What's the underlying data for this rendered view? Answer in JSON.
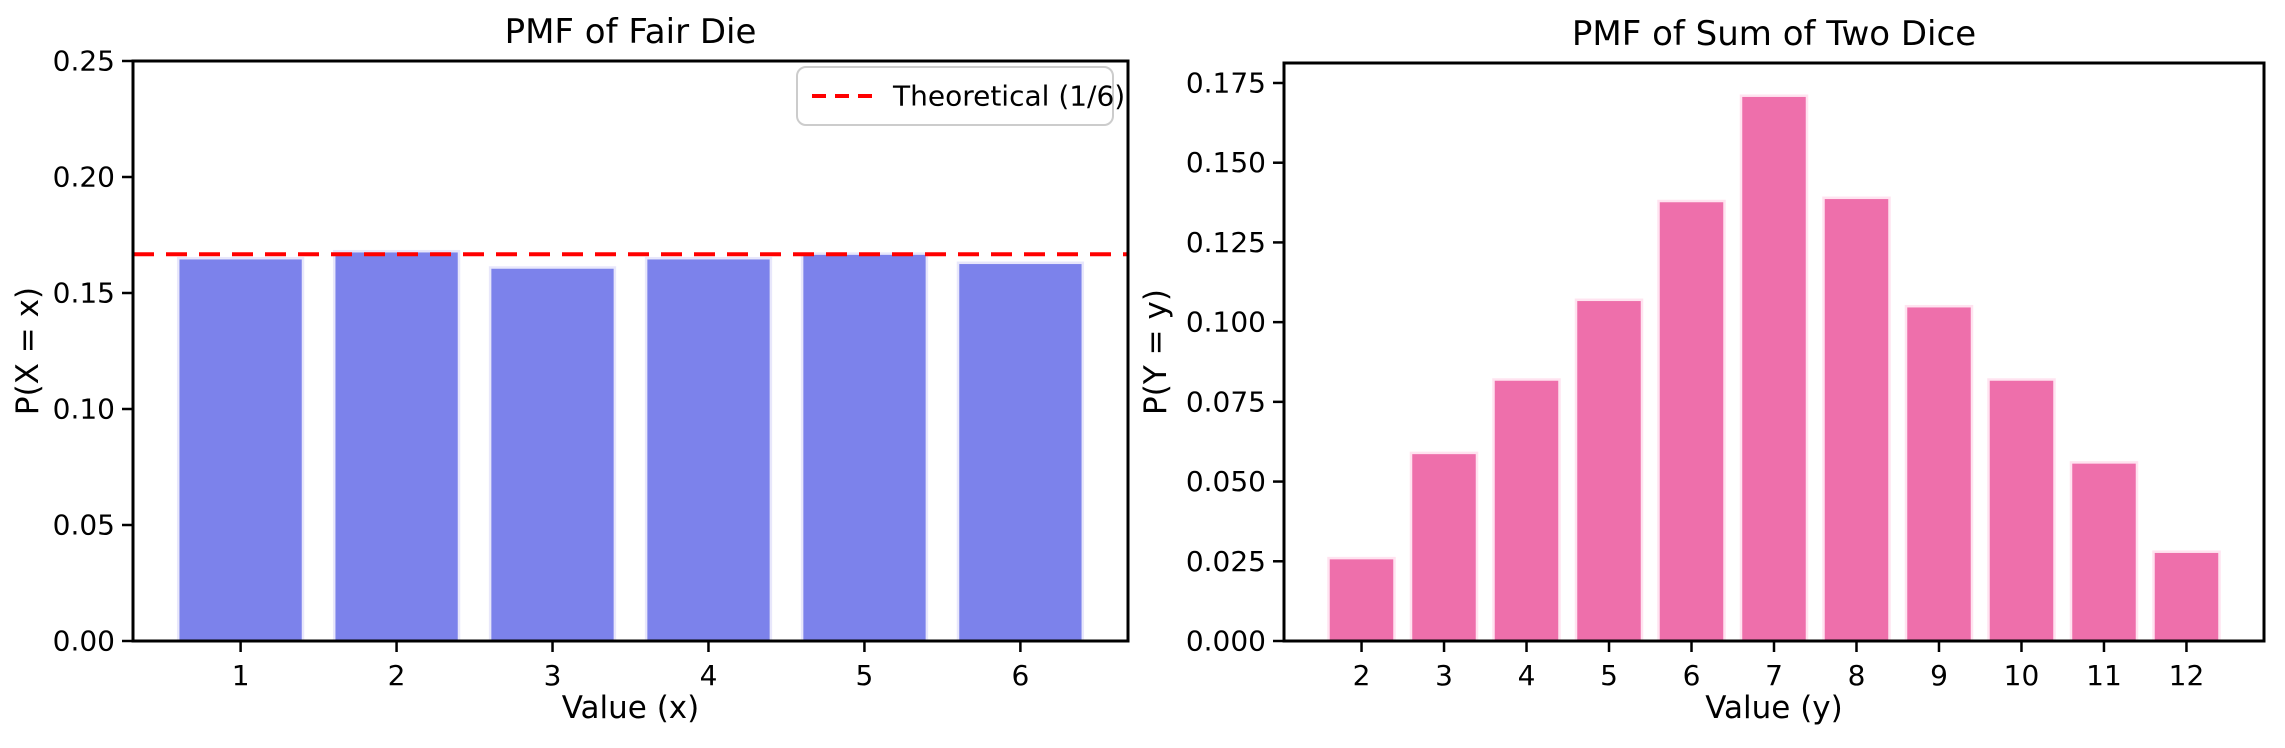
{
  "figure": {
    "background_color": "#ffffff",
    "text_color": "#000000",
    "spine_color": "#000000"
  },
  "chart_data": [
    {
      "type": "bar",
      "title": "PMF of Fair Die",
      "xlabel": "Value (x)",
      "ylabel": "P(X = x)",
      "categories": [
        "1",
        "2",
        "3",
        "4",
        "5",
        "6"
      ],
      "values": [
        0.165,
        0.168,
        0.161,
        0.165,
        0.167,
        0.163
      ],
      "ylim": [
        0,
        0.25
      ],
      "yticks": [
        0.0,
        0.05,
        0.1,
        0.15,
        0.2,
        0.25
      ],
      "ytick_labels": [
        "0.00",
        "0.05",
        "0.10",
        "0.15",
        "0.20",
        "0.25"
      ],
      "grid": false,
      "legend_position": "upper right",
      "bar_color": "#7c82eb",
      "bar_edge_color": "#e8e7fb",
      "reference_line": {
        "value": 0.1667,
        "label": "Theoretical (1/6)",
        "color": "#ff0000",
        "style": "dashed"
      }
    },
    {
      "type": "bar",
      "title": "PMF of Sum of Two Dice",
      "xlabel": "Value (y)",
      "ylabel": "P(Y = y)",
      "categories": [
        "2",
        "3",
        "4",
        "5",
        "6",
        "7",
        "8",
        "9",
        "10",
        "11",
        "12"
      ],
      "values": [
        0.026,
        0.059,
        0.082,
        0.107,
        0.138,
        0.171,
        0.139,
        0.105,
        0.082,
        0.056,
        0.028
      ],
      "ylim": [
        0,
        0.18127
      ],
      "yticks": [
        0.0,
        0.025,
        0.05,
        0.075,
        0.1,
        0.125,
        0.15,
        0.175
      ],
      "ytick_labels": [
        "0.000",
        "0.025",
        "0.050",
        "0.075",
        "0.100",
        "0.125",
        "0.150",
        "0.175"
      ],
      "grid": false,
      "legend_position": "none",
      "bar_color": "#ee6fab",
      "bar_edge_color": "#ffe3f0"
    }
  ]
}
